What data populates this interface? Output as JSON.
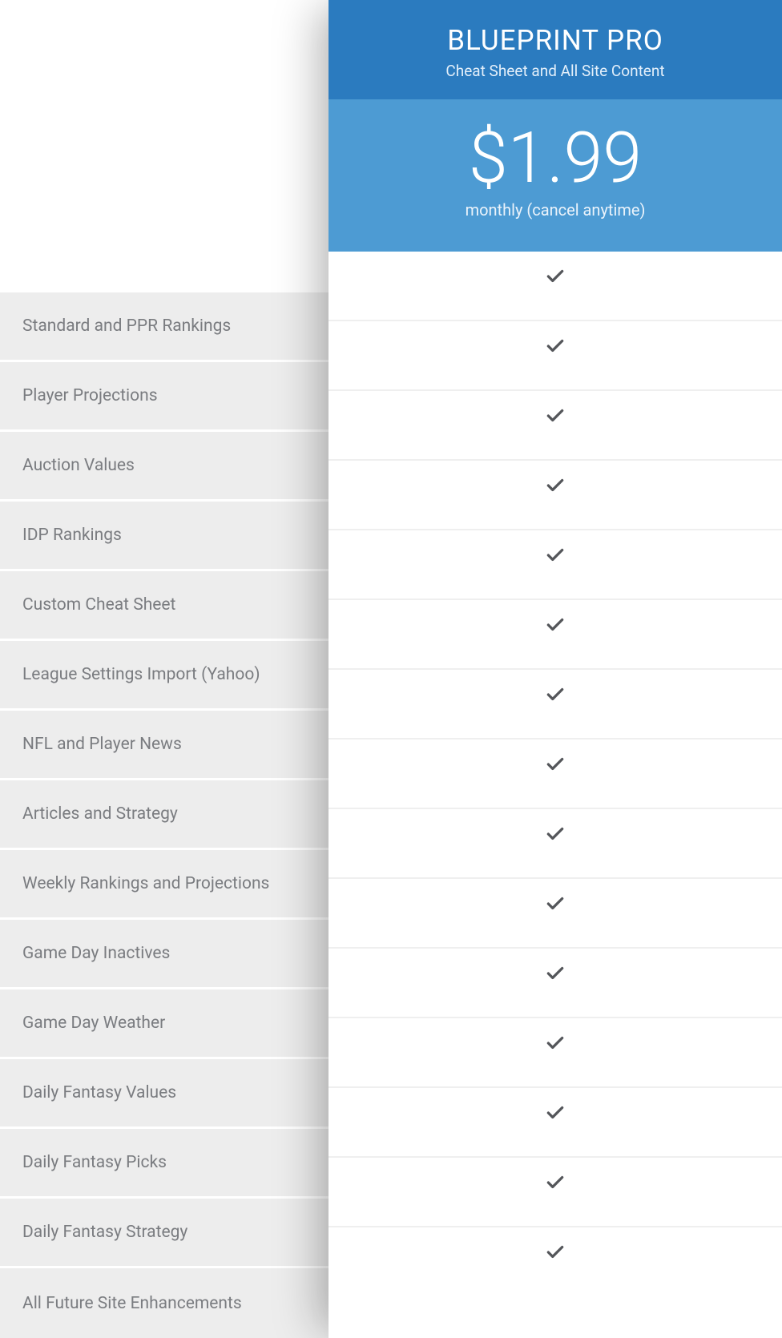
{
  "plan": {
    "title": "BLUEPRINT PRO",
    "subtitle": "Cheat Sheet and All Site Content",
    "price": "$1.99",
    "billing": "monthly (cancel anytime)",
    "header_bg": "#2b7bbf",
    "price_bg": "#4d9bd3"
  },
  "features": [
    {
      "label": "Standard and PPR Rankings",
      "included": true
    },
    {
      "label": "Player Projections",
      "included": true
    },
    {
      "label": "Auction Values",
      "included": true
    },
    {
      "label": "IDP Rankings",
      "included": true
    },
    {
      "label": "Custom Cheat Sheet",
      "included": true
    },
    {
      "label": "League Settings Import (Yahoo)",
      "included": true
    },
    {
      "label": "NFL and Player News",
      "included": true
    },
    {
      "label": "Articles and Strategy",
      "included": true
    },
    {
      "label": "Weekly Rankings and Projections",
      "included": true
    },
    {
      "label": "Game Day Inactives",
      "included": true
    },
    {
      "label": "Game Day Weather",
      "included": true
    },
    {
      "label": "Daily Fantasy Values",
      "included": true
    },
    {
      "label": "Daily Fantasy Picks",
      "included": true
    },
    {
      "label": "Daily Fantasy Strategy",
      "included": true
    },
    {
      "label": "All Future Site Enhancements",
      "included": true
    }
  ],
  "colors": {
    "feature_row_bg": "#ededed",
    "feature_text": "#7a7c80",
    "check_color": "#54565a",
    "row_divider": "#ffffff",
    "check_divider": "#efefef"
  }
}
